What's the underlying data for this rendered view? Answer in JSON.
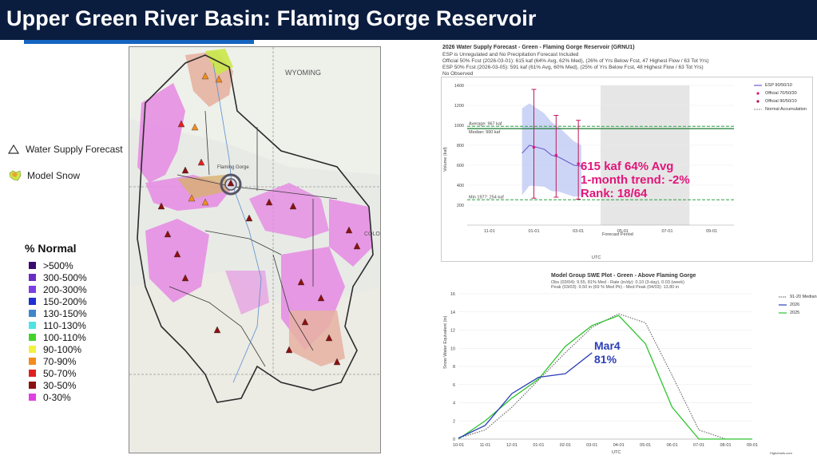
{
  "header": {
    "title": "Upper Green River Basin: Flaming Gorge Reservoir"
  },
  "legend": {
    "water_supply_forecast": "Water Supply Forecast",
    "model_snow": "Model Snow",
    "pct_title": "% Normal",
    "items": [
      {
        "label": ">500%",
        "color": "#3a0a6e"
      },
      {
        "label": "300-500%",
        "color": "#6a2bc4"
      },
      {
        "label": "200-300%",
        "color": "#7b3fe4"
      },
      {
        "label": "150-200%",
        "color": "#1f2fd1"
      },
      {
        "label": "130-150%",
        "color": "#3f87c9"
      },
      {
        "label": "110-130%",
        "color": "#4fe3e3"
      },
      {
        "label": "100-110%",
        "color": "#44d22a"
      },
      {
        "label": "90-100%",
        "color": "#f2f23c"
      },
      {
        "label": "70-90%",
        "color": "#f28c1c"
      },
      {
        "label": "50-70%",
        "color": "#e02020"
      },
      {
        "label": "30-50%",
        "color": "#8a1010"
      },
      {
        "label": "0-30%",
        "color": "#e040e0"
      }
    ]
  },
  "map": {
    "labels": [
      "WYOMING",
      "Flaming Gorge",
      "COLO"
    ]
  },
  "forecast_panel": {
    "title": "2026 Water Supply Forecast - Green - Flaming Gorge Reservoir (GRNU1)",
    "lines": [
      "ESP is Unregulated and No Precipitation Forecast Included",
      "Official 50% Fcst (2026-03-01): 615 kaf (64% Avg, 62% Med), (26% of Yrs Below Fcst, 47 Highest Flow / 63 Tot Yrs)",
      "ESP 50% Fcst (2026-03-05): 591 kaf (61% Avg, 60% Med), (25% of Yrs Below Fcst, 48 Highest Flow / 63 Tot Yrs)",
      "No Observed"
    ],
    "legend": [
      "ESP 90/50/10",
      "Official 70/50/30",
      "Official 90/50/10",
      "Normal Accumulation"
    ],
    "ylabel": "Volume (kaf)",
    "xlabel": "UTC",
    "annotations": [
      "Average: 967 kaf",
      "Median: 990 kaf",
      "Min 1977: 254 kaf",
      "Forecast Period"
    ],
    "callout": [
      "615 kaf  64% Avg",
      "1-month trend: -2%",
      "Rank: 18/64"
    ]
  },
  "swe_panel": {
    "title": "Model Group SWE Plot - Green - Above Flaming Gorge",
    "sub": [
      "Obs (03/04): 9.55, 81% Med - Rate (in/dy): 0.10 (3-day), 0.03 (week)",
      "Peak (03/03): 9.50 in (69 % Med Pk) - Med Peak (04/03): 13.80 in"
    ],
    "legend": [
      "91-20 Median",
      "2026",
      "2025"
    ],
    "ylabel": "Snow Water Equivalent (in)",
    "xlabel": "UTC",
    "callout": [
      "Mar4",
      "81%"
    ],
    "credit": "Highcharts.com"
  },
  "chart_data": [
    {
      "type": "line",
      "title": "2026 Water Supply Forecast - Green - Flaming Gorge Reservoir (GRNU1)",
      "xlabel": "UTC",
      "ylabel": "Volume (kaf)",
      "ylim": [
        0,
        1400
      ],
      "x_ticks": [
        "11-01",
        "01-01",
        "03-01",
        "05-01",
        "07-01",
        "09-01"
      ],
      "y_ticks": [
        200,
        400,
        600,
        800,
        1000,
        1200,
        1400
      ],
      "average": 967,
      "median": 990,
      "min_1977": 254,
      "series": [
        {
          "name": "ESP 90/50/10",
          "x": [
            "12-15",
            "12-25",
            "01-05",
            "01-15",
            "01-25",
            "02-05",
            "02-15",
            "02-25",
            "03-05"
          ],
          "values": [
            720,
            800,
            780,
            760,
            700,
            680,
            640,
            600,
            591
          ]
        },
        {
          "name": "Official 70/50/30",
          "x": [
            "01-01",
            "02-01",
            "03-01"
          ],
          "values": [
            780,
            700,
            615
          ]
        },
        {
          "name": "Official 90/50/10",
          "x": [
            "01-01",
            "02-01",
            "03-01"
          ],
          "values": [
            [
              270,
              780,
              1360
            ],
            [
              280,
              700,
              1100
            ],
            [
              260,
              615,
              1050
            ]
          ]
        }
      ]
    },
    {
      "type": "line",
      "title": "Model Group SWE Plot - Green - Above Flaming Gorge",
      "xlabel": "UTC",
      "ylabel": "Snow Water Equivalent (in)",
      "ylim": [
        0,
        16
      ],
      "categories": [
        "10-01",
        "11-01",
        "12-01",
        "01-01",
        "02-01",
        "03-01",
        "04-01",
        "05-01",
        "06-01",
        "07-01",
        "08-01",
        "09-01"
      ],
      "series": [
        {
          "name": "91-20 Median",
          "values": [
            0.1,
            1.0,
            3.5,
            6.5,
            9.5,
            12.3,
            13.8,
            12.8,
            7.0,
            1.0,
            0,
            0
          ]
        },
        {
          "name": "2026",
          "values": [
            0.1,
            1.5,
            5.0,
            6.8,
            7.2,
            9.5,
            null,
            null,
            null,
            null,
            null,
            null
          ]
        },
        {
          "name": "2025",
          "values": [
            0,
            2.0,
            4.5,
            6.6,
            10.2,
            12.5,
            13.6,
            10.5,
            3.5,
            0,
            0,
            0
          ]
        }
      ]
    }
  ]
}
